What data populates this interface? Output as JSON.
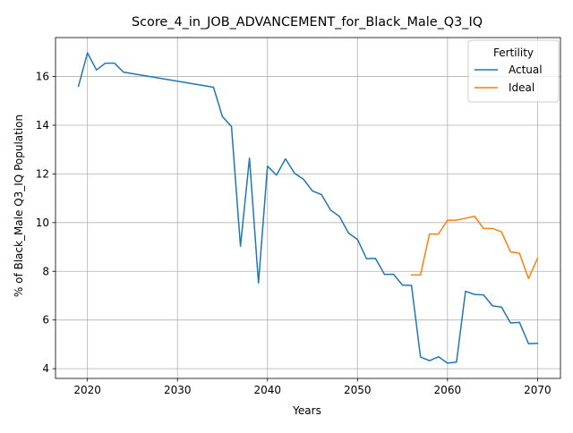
{
  "chart_data": {
    "type": "line",
    "title": "Score_4_in_JOB_ADVANCEMENT_for_Black_Male_Q3_IQ",
    "xlabel": "Years",
    "ylabel": "% of Black_Male Q3_IQ Population",
    "xlim": [
      2016.45,
      2072.55
    ],
    "ylim": [
      3.6,
      17.6
    ],
    "xticks": [
      2020,
      2030,
      2040,
      2050,
      2060,
      2070
    ],
    "yticks": [
      4,
      6,
      8,
      10,
      12,
      14,
      16
    ],
    "grid": true,
    "legend": {
      "title": "Fertility",
      "placement": "top-right"
    },
    "series": [
      {
        "name": "Actual",
        "color": "#1f77b4",
        "x": [
          2019,
          2020,
          2021,
          2022,
          2023,
          2024,
          2034,
          2035,
          2036,
          2037,
          2038,
          2039,
          2040,
          2041,
          2042,
          2043,
          2044,
          2045,
          2046,
          2047,
          2048,
          2049,
          2050,
          2051,
          2052,
          2053,
          2054,
          2055,
          2056,
          2057,
          2058,
          2059,
          2060,
          2061,
          2062,
          2063,
          2064,
          2065,
          2066,
          2067,
          2068,
          2069,
          2070
        ],
        "y": [
          15.6,
          16.97,
          16.27,
          16.55,
          16.55,
          16.18,
          15.56,
          14.35,
          13.95,
          9.03,
          12.65,
          7.52,
          12.32,
          11.95,
          12.62,
          12.03,
          11.78,
          11.3,
          11.15,
          10.52,
          10.25,
          9.57,
          9.31,
          8.52,
          8.53,
          7.87,
          7.88,
          7.43,
          7.42,
          4.48,
          4.33,
          4.49,
          4.23,
          4.27,
          7.18,
          7.05,
          7.03,
          6.58,
          6.53,
          5.88,
          5.9,
          5.03,
          5.04
        ]
      },
      {
        "name": "Ideal",
        "color": "#ff7f0e",
        "x": [
          2056,
          2057,
          2058,
          2059,
          2060,
          2061,
          2062,
          2063,
          2064,
          2065,
          2066,
          2067,
          2068,
          2069,
          2070
        ],
        "y": [
          7.85,
          7.85,
          9.53,
          9.53,
          10.1,
          10.1,
          10.18,
          10.26,
          9.76,
          9.76,
          9.62,
          8.8,
          8.74,
          7.7,
          8.53
        ]
      }
    ]
  }
}
